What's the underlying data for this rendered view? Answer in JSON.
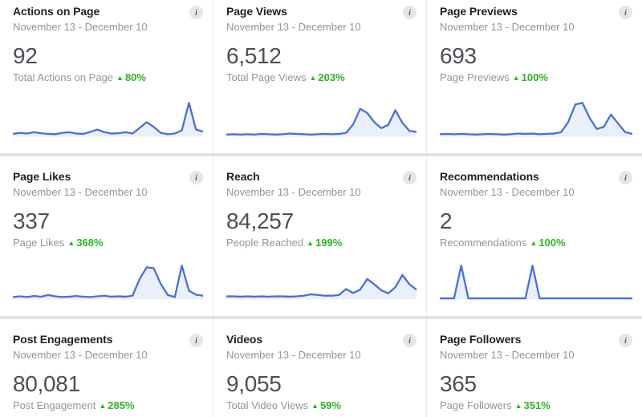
{
  "dashboard": {
    "date_range": "November 13 - December 10",
    "info_glyph": "i",
    "up_symbol": "▲",
    "accent_blue": "#4b6fd6",
    "accent_green": "#2cb327",
    "cards": [
      {
        "title": "Actions on Page",
        "value": "92",
        "label": "Total Actions on Page",
        "change": "80%",
        "sparkline": [
          0.07,
          0.1,
          0.08,
          0.12,
          0.09,
          0.07,
          0.06,
          0.1,
          0.12,
          0.08,
          0.07,
          0.13,
          0.2,
          0.12,
          0.08,
          0.09,
          0.12,
          0.08,
          0.25,
          0.42,
          0.28,
          0.1,
          0.06,
          0.08,
          0.18,
          1.0,
          0.2,
          0.14
        ]
      },
      {
        "title": "Page Views",
        "value": "6,512",
        "label": "Total Page Views",
        "change": "203%",
        "sparkline": [
          0.05,
          0.06,
          0.05,
          0.06,
          0.05,
          0.07,
          0.06,
          0.05,
          0.06,
          0.08,
          0.07,
          0.06,
          0.05,
          0.06,
          0.07,
          0.06,
          0.07,
          0.1,
          0.35,
          0.82,
          0.7,
          0.42,
          0.24,
          0.34,
          0.78,
          0.4,
          0.16,
          0.13
        ]
      },
      {
        "title": "Page Previews",
        "value": "693",
        "label": "Page Previews",
        "change": "100%",
        "sparkline": [
          0.06,
          0.07,
          0.06,
          0.07,
          0.06,
          0.05,
          0.06,
          0.07,
          0.06,
          0.05,
          0.06,
          0.08,
          0.07,
          0.08,
          0.06,
          0.07,
          0.08,
          0.12,
          0.42,
          0.95,
          1.0,
          0.55,
          0.22,
          0.28,
          0.65,
          0.38,
          0.12,
          0.07
        ]
      },
      {
        "title": "Page Likes",
        "value": "337",
        "label": "Page Likes",
        "change": "368%",
        "sparkline": [
          0.06,
          0.08,
          0.06,
          0.09,
          0.07,
          0.12,
          0.08,
          0.06,
          0.07,
          0.09,
          0.07,
          0.06,
          0.08,
          0.1,
          0.07,
          0.08,
          0.07,
          0.1,
          0.6,
          0.95,
          0.92,
          0.45,
          0.12,
          0.06,
          1.0,
          0.25,
          0.13,
          0.1
        ]
      },
      {
        "title": "Reach",
        "value": "84,257",
        "label": "People Reached",
        "change": "199%",
        "sparkline": [
          0.08,
          0.08,
          0.07,
          0.08,
          0.07,
          0.08,
          0.07,
          0.08,
          0.08,
          0.07,
          0.08,
          0.1,
          0.14,
          0.12,
          0.1,
          0.1,
          0.12,
          0.3,
          0.18,
          0.28,
          0.6,
          0.44,
          0.26,
          0.17,
          0.35,
          0.72,
          0.44,
          0.28
        ]
      },
      {
        "title": "Recommendations",
        "value": "2",
        "label": "Recommendations",
        "change": "100%",
        "sparkline": [
          0.02,
          0.02,
          0.02,
          1.0,
          0.02,
          0.02,
          0.02,
          0.02,
          0.02,
          0.02,
          0.02,
          0.02,
          0.02,
          1.0,
          0.02,
          0.02,
          0.02,
          0.02,
          0.02,
          0.02,
          0.02,
          0.02,
          0.02,
          0.02,
          0.02,
          0.02,
          0.02,
          0.02
        ]
      },
      {
        "title": "Post Engagements",
        "value": "80,081",
        "label": "Post Engagement",
        "change": "285%",
        "sparkline": []
      },
      {
        "title": "Videos",
        "value": "9,055",
        "label": "Total Video Views",
        "change": "59%",
        "sparkline": []
      },
      {
        "title": "Page Followers",
        "value": "365",
        "label": "Page Followers",
        "change": "351%",
        "sparkline": []
      }
    ]
  }
}
